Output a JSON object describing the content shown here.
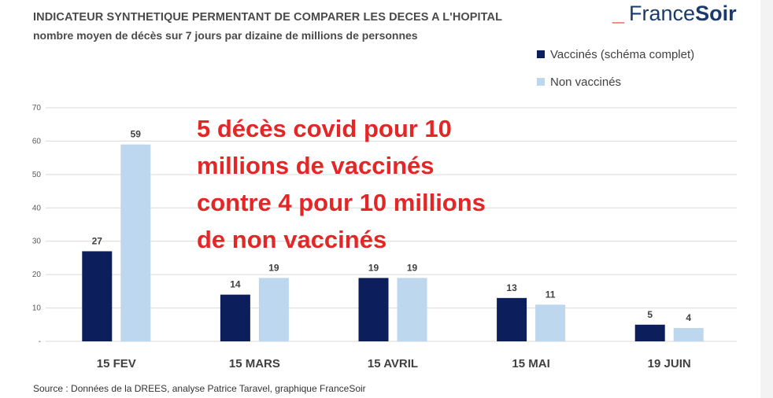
{
  "header": {
    "title": "INDICATEUR SYNTHETIQUE PERMENTANT DE COMPARER LES DECES A L'HOPITAL",
    "subtitle": "nombre moyen de décès sur 7 jours par dizaine de millions de personnes"
  },
  "logo": {
    "part1": "France",
    "part2": "Soir"
  },
  "annotation": {
    "lines": [
      "5 décès covid pour 10",
      "millions de vaccinés",
      "contre 4 pour 10 millions",
      "de non vaccinés"
    ]
  },
  "source": "Source : Données de la DREES, analyse Patrice Taravel, graphique FranceSoir",
  "colors": {
    "vaccinated": "#0c1f5c",
    "unvaccinated": "#bdd7ee",
    "annotation": "#e32626",
    "grid": "#d9d9d9"
  },
  "chart_data": {
    "type": "bar",
    "categories": [
      "15 FEV",
      "15 MARS",
      "15 AVRIL",
      "15 MAI",
      "19 JUIN"
    ],
    "series": [
      {
        "name": "Vaccinés (schéma complet)",
        "values": [
          27,
          14,
          19,
          13,
          5
        ]
      },
      {
        "name": "Non  vaccinés",
        "values": [
          59,
          19,
          19,
          11,
          4
        ]
      }
    ],
    "title": "INDICATEUR SYNTHETIQUE PERMENTANT DE COMPARER LES DECES A L'HOPITAL",
    "ylabel": "",
    "xlabel": "",
    "ylim": [
      0,
      70
    ],
    "yticks": [
      "-",
      "10",
      "20",
      "30",
      "40",
      "50",
      "60",
      "70"
    ],
    "grid": true,
    "legend": "top-right"
  }
}
